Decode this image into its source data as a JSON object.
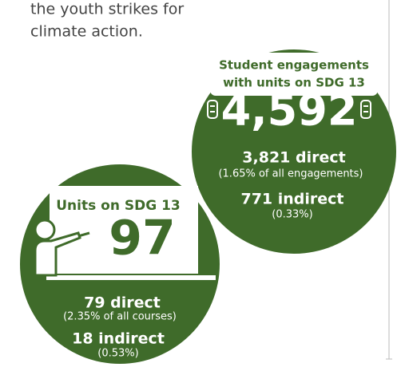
{
  "intro": {
    "lines": [
      "the youth strikes for",
      "climate action."
    ]
  },
  "engagements": {
    "title_lines": [
      "Student engagements",
      "with units on SDG 13"
    ],
    "total": "4,592",
    "direct": "3,821 direct",
    "direct_note": "(1.65% of all engagements)",
    "indirect": "771 indirect",
    "indirect_note": "(0.33%)"
  },
  "units": {
    "title": "Units on SDG 13",
    "total": "97",
    "direct": "79 direct",
    "direct_note": "(2.35% of all courses)",
    "indirect": "18 indirect",
    "indirect_note": "(0.53%)"
  }
}
